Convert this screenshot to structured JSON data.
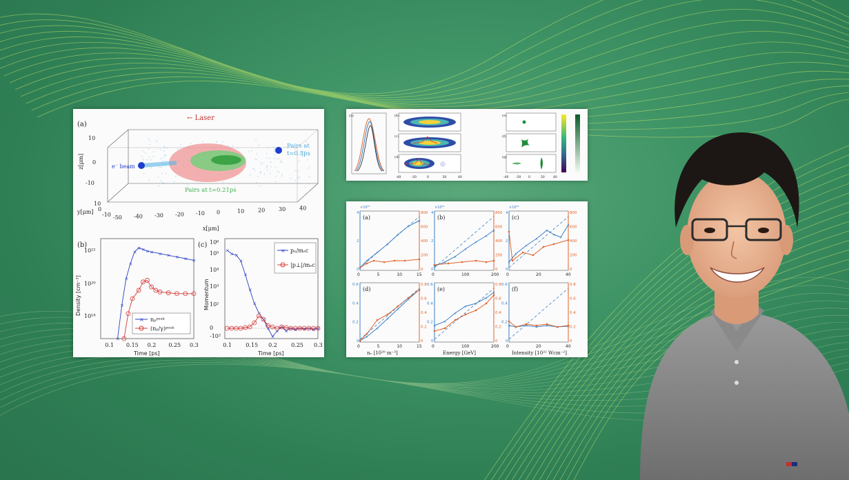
{
  "left_figure": {
    "panel_a": {
      "label": "(a)",
      "laser": "← Laser",
      "ebeam": "e⁻ beam",
      "pairs_late_1": "Pairs at",
      "pairs_late_2": "t=0.3ps",
      "pairs_early": "Pairs at t=0.21ps",
      "zlabel": "z[μm]",
      "ylabel": "y[μm]",
      "xlabel": "x[μm]",
      "z_ticks": [
        "10",
        "0",
        "-10"
      ],
      "y_ticks": [
        "10",
        "0",
        "-10"
      ],
      "x_ticks": [
        "-50",
        "-40",
        "-30",
        "-20",
        "-10",
        "0",
        "10",
        "20",
        "30",
        "40"
      ]
    },
    "panel_b": {
      "label": "(b)",
      "ylabel": "Density [cm⁻³]",
      "xlabel": "Time [ps]",
      "y_ticks": [
        "10²²",
        "10²⁰",
        "10¹⁸"
      ],
      "x_ticks": [
        "0.1",
        "0.15",
        "0.2",
        "0.25",
        "0.3"
      ],
      "legend_1": "nₚᵖᵉᵃᵏ",
      "legend_2": "(nₚ/γ)ᵖᵉᵃᵏ"
    },
    "panel_c": {
      "label": "(c)",
      "ylabel": "Momentum",
      "xlabel": "Time [ps]",
      "y_ticks": [
        "10⁶",
        "10⁵",
        "10⁴",
        "10³",
        "10²",
        "0",
        "-10²"
      ],
      "x_ticks": [
        "0.1",
        "0.15",
        "0.2",
        "0.25",
        "0.3"
      ],
      "legend_1": "pₓ/mₑc",
      "legend_2": "|p⊥|/mₑc"
    }
  },
  "right_top_figure": {
    "labels": [
      "(a)",
      "(b)",
      "(c)",
      "(d)",
      "(e)",
      "(f)",
      "(g)"
    ],
    "x_ticks": [
      "-40",
      "-20",
      "0",
      "20",
      "40"
    ]
  },
  "right_bottom_figure": {
    "labels": [
      "(a)",
      "(b)",
      "(c)",
      "(d)",
      "(e)",
      "(f)"
    ],
    "xlabels": [
      "nₑ [10²⁰ m⁻³]",
      "Energy [GeV]",
      "Intensity [10²² Wcm⁻²]"
    ],
    "x_ticks_a": [
      "0",
      "5",
      "10",
      "15"
    ],
    "x_ticks_b": [
      "0",
      "100",
      "200"
    ],
    "x_ticks_c": [
      "0",
      "20",
      "40"
    ],
    "left_ticks_top": [
      "4",
      "2",
      "0"
    ],
    "left_ticks_bottom": [
      "0.6",
      "0.4",
      "0.2",
      "0"
    ],
    "right_ticks_top": [
      "800",
      "600",
      "400",
      "200",
      "0"
    ],
    "right_ticks_bottom": [
      "0.8",
      "0.6",
      "0.4",
      "0.2",
      "0"
    ],
    "exponent": "×10²⁰"
  },
  "colors": {
    "background": "#3f9466",
    "wave_lines": "#c8e86a",
    "series_blue": "#3b7fc4",
    "series_orange": "#e0622a",
    "series_red": "#d43a3a"
  }
}
